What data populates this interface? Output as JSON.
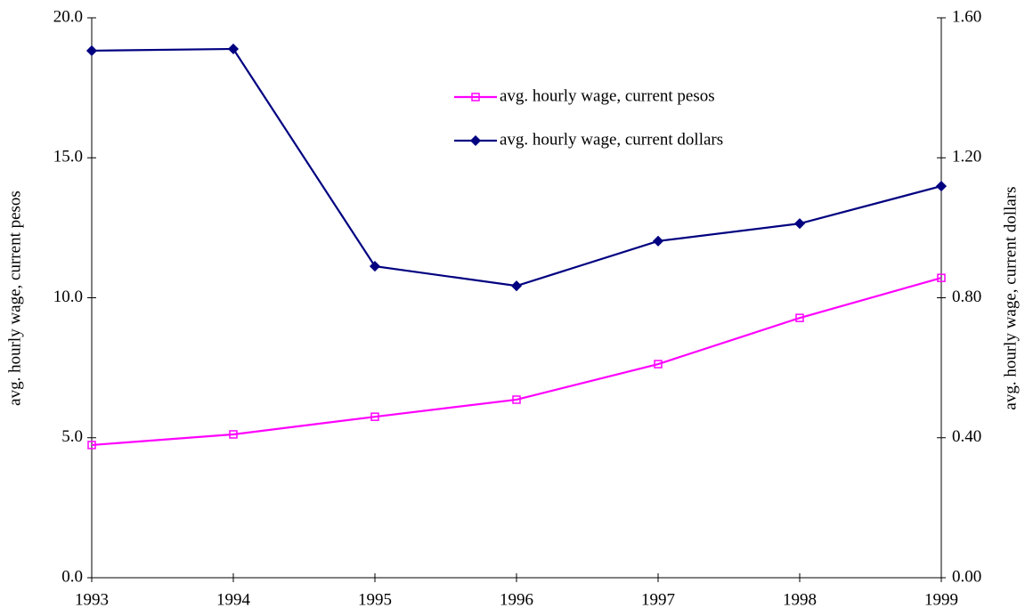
{
  "chart_data": {
    "type": "line",
    "x": [
      1993,
      1994,
      1995,
      1996,
      1997,
      1998,
      1999
    ],
    "xlim": [
      1993,
      1999
    ],
    "xticks": [
      1993,
      1994,
      1995,
      1996,
      1997,
      1998,
      1999
    ],
    "ylabel": "avg. hourly wage,  current pesos",
    "y2label": "avg. hourly wage, current dollars",
    "ylim": [
      0,
      20
    ],
    "yticks": [
      {
        "value": 0,
        "label": "0.0"
      },
      {
        "value": 5,
        "label": "5.0"
      },
      {
        "value": 10,
        "label": "10.0"
      },
      {
        "value": 15,
        "label": "15.0"
      },
      {
        "value": 20,
        "label": "20.0"
      }
    ],
    "y2lim": [
      0,
      1.6
    ],
    "y2ticks": [
      {
        "value": 0,
        "label": "0.00"
      },
      {
        "value": 0.4,
        "label": "0.40"
      },
      {
        "value": 0.8,
        "label": "0.80"
      },
      {
        "value": 1.2,
        "label": "1.20"
      },
      {
        "value": 1.6,
        "label": "1.60"
      }
    ],
    "series": [
      {
        "name": "avg. hourly wage, current pesos",
        "color": "#ff00ff",
        "marker": "square",
        "values": [
          4.74,
          5.12,
          5.75,
          6.36,
          7.63,
          9.28,
          10.71
        ]
      },
      {
        "name": "avg. hourly wage, current dollars",
        "color": "#000080",
        "marker": "diamond",
        "axis": "y2",
        "values": [
          1.506,
          1.511,
          0.89,
          0.834,
          0.962,
          1.012,
          1.119
        ]
      }
    ]
  }
}
